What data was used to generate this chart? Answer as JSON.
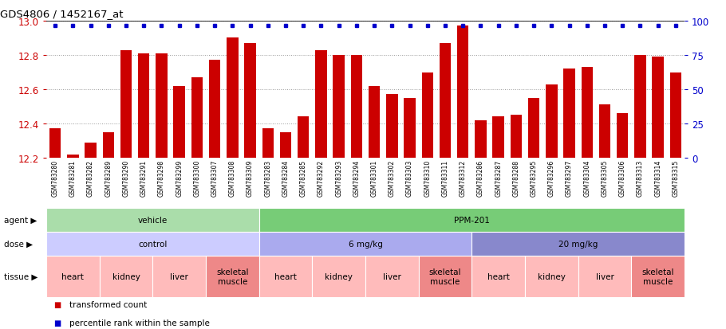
{
  "title": "GDS4806 / 1452167_at",
  "samples": [
    "GSM783280",
    "GSM783281",
    "GSM783282",
    "GSM783289",
    "GSM783290",
    "GSM783291",
    "GSM783298",
    "GSM783299",
    "GSM783300",
    "GSM783307",
    "GSM783308",
    "GSM783309",
    "GSM783283",
    "GSM783284",
    "GSM783285",
    "GSM783292",
    "GSM783293",
    "GSM783294",
    "GSM783301",
    "GSM783302",
    "GSM783303",
    "GSM783310",
    "GSM783311",
    "GSM783312",
    "GSM783286",
    "GSM783287",
    "GSM783288",
    "GSM783295",
    "GSM783296",
    "GSM783297",
    "GSM783304",
    "GSM783305",
    "GSM783306",
    "GSM783313",
    "GSM783314",
    "GSM783315"
  ],
  "values": [
    12.37,
    12.22,
    12.29,
    12.35,
    12.83,
    12.81,
    12.81,
    12.62,
    12.67,
    12.77,
    12.9,
    12.87,
    12.37,
    12.35,
    12.44,
    12.83,
    12.8,
    12.8,
    12.62,
    12.57,
    12.55,
    12.7,
    12.87,
    12.97,
    12.42,
    12.44,
    12.45,
    12.55,
    12.63,
    12.72,
    12.73,
    12.51,
    12.46,
    12.8,
    12.79,
    12.7
  ],
  "percentiles": [
    100,
    100,
    100,
    100,
    100,
    100,
    100,
    100,
    100,
    100,
    100,
    100,
    100,
    100,
    100,
    100,
    100,
    100,
    100,
    100,
    100,
    100,
    100,
    100,
    100,
    100,
    100,
    100,
    100,
    100,
    100,
    100,
    100,
    100,
    100,
    100
  ],
  "ymin": 12.2,
  "ymax": 13.0,
  "yticks": [
    12.2,
    12.4,
    12.6,
    12.8,
    13.0
  ],
  "y2ticks": [
    0,
    25,
    50,
    75,
    100
  ],
  "bar_color": "#cc0000",
  "percentile_color": "#0000cc",
  "agent_groups": [
    {
      "label": "vehicle",
      "start": 0,
      "end": 11,
      "color": "#aaddaa"
    },
    {
      "label": "PPM-201",
      "start": 12,
      "end": 35,
      "color": "#77cc77"
    }
  ],
  "dose_groups": [
    {
      "label": "control",
      "start": 0,
      "end": 11,
      "color": "#ccccff"
    },
    {
      "label": "6 mg/kg",
      "start": 12,
      "end": 23,
      "color": "#aaaaee"
    },
    {
      "label": "20 mg/kg",
      "start": 24,
      "end": 35,
      "color": "#8888cc"
    }
  ],
  "tissue_groups": [
    {
      "label": "heart",
      "start": 0,
      "end": 2,
      "color": "#ffbbbb"
    },
    {
      "label": "kidney",
      "start": 3,
      "end": 5,
      "color": "#ffbbbb"
    },
    {
      "label": "liver",
      "start": 6,
      "end": 8,
      "color": "#ffbbbb"
    },
    {
      "label": "skeletal\nmuscle",
      "start": 9,
      "end": 11,
      "color": "#ee8888"
    },
    {
      "label": "heart",
      "start": 12,
      "end": 14,
      "color": "#ffbbbb"
    },
    {
      "label": "kidney",
      "start": 15,
      "end": 17,
      "color": "#ffbbbb"
    },
    {
      "label": "liver",
      "start": 18,
      "end": 20,
      "color": "#ffbbbb"
    },
    {
      "label": "skeletal\nmuscle",
      "start": 21,
      "end": 23,
      "color": "#ee8888"
    },
    {
      "label": "heart",
      "start": 24,
      "end": 26,
      "color": "#ffbbbb"
    },
    {
      "label": "kidney",
      "start": 27,
      "end": 29,
      "color": "#ffbbbb"
    },
    {
      "label": "liver",
      "start": 30,
      "end": 32,
      "color": "#ffbbbb"
    },
    {
      "label": "skeletal\nmuscle",
      "start": 33,
      "end": 35,
      "color": "#ee8888"
    }
  ],
  "legend_items": [
    {
      "color": "#cc0000",
      "label": "transformed count"
    },
    {
      "color": "#0000cc",
      "label": "percentile rank within the sample"
    }
  ]
}
